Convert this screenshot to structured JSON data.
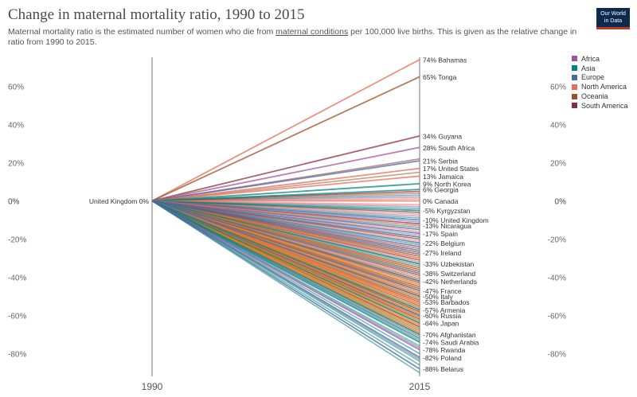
{
  "title": "Change in maternal mortality ratio, 1990 to 2015",
  "subtitle": {
    "before": "Maternal mortality ratio is the estimated number of women who die from ",
    "link": "maternal conditions",
    "after": " per 100,000 live births. This is given as the relative change in ratio from 1990 to 2015."
  },
  "logo": {
    "line1": "Our World",
    "line2": "in Data"
  },
  "colors": {
    "Africa": "#a2559c",
    "Asia": "#00847e",
    "Europe": "#4c6a9c",
    "North America": "#e56e5a",
    "Oceania": "#9a5129",
    "South America": "#883039",
    "Other": "#ff7f0e"
  },
  "legend": [
    "Africa",
    "Asia",
    "Europe",
    "North America",
    "Oceania",
    "South America"
  ],
  "chart_data": {
    "type": "slope",
    "title": "Change in maternal mortality ratio, 1990 to 2015",
    "x_labels": [
      "1990",
      "2015"
    ],
    "ylim": [
      -90,
      75
    ],
    "y_ticks": [
      60,
      40,
      20,
      0,
      -20,
      -40,
      -60,
      -80
    ],
    "tick_suffix": "%",
    "start_label": {
      "name": "United Kingdom",
      "value": "0%"
    },
    "labeled_series": [
      {
        "name": "Bahamas",
        "region": "North America",
        "value": 74
      },
      {
        "name": "Tonga",
        "region": "Oceania",
        "value": 65
      },
      {
        "name": "Guyana",
        "region": "South America",
        "value": 34
      },
      {
        "name": "South Africa",
        "region": "Africa",
        "value": 28
      },
      {
        "name": "Serbia",
        "region": "Europe",
        "value": 21
      },
      {
        "name": "United States",
        "region": "North America",
        "value": 17
      },
      {
        "name": "Jamaica",
        "region": "North America",
        "value": 13
      },
      {
        "name": "North Korea",
        "region": "Asia",
        "value": 9
      },
      {
        "name": "Georgia",
        "region": "Asia",
        "value": 6
      },
      {
        "name": "Canada",
        "region": "North America",
        "value": 0
      },
      {
        "name": "Kyrgyzstan",
        "region": "Asia",
        "value": -5
      },
      {
        "name": "United Kingdom",
        "region": "Europe",
        "value": -10
      },
      {
        "name": "Nicaragua",
        "region": "North America",
        "value": -13
      },
      {
        "name": "Spain",
        "region": "Europe",
        "value": -17
      },
      {
        "name": "Belgium",
        "region": "Europe",
        "value": -22
      },
      {
        "name": "Ireland",
        "region": "Europe",
        "value": -27
      },
      {
        "name": "Uzbekistan",
        "region": "Asia",
        "value": -33
      },
      {
        "name": "Switzerland",
        "region": "Europe",
        "value": -38
      },
      {
        "name": "Netherlands",
        "region": "Europe",
        "value": -42
      },
      {
        "name": "France",
        "region": "Europe",
        "value": -47
      },
      {
        "name": "Italy",
        "region": "Europe",
        "value": -50
      },
      {
        "name": "Barbados",
        "region": "North America",
        "value": -53
      },
      {
        "name": "Armenia",
        "region": "Asia",
        "value": -57
      },
      {
        "name": "Russia",
        "region": "Europe",
        "value": -60
      },
      {
        "name": "Japan",
        "region": "Asia",
        "value": -64
      },
      {
        "name": "Afghanistan",
        "region": "Asia",
        "value": -70
      },
      {
        "name": "Saudi Arabia",
        "region": "Asia",
        "value": -74
      },
      {
        "name": "Rwanda",
        "region": "Africa",
        "value": -78
      },
      {
        "name": "Poland",
        "region": "Europe",
        "value": -82
      },
      {
        "name": "Belarus",
        "region": "Europe",
        "value": -88
      }
    ],
    "background_series": [
      {
        "region": "Africa",
        "values": [
          2,
          -3,
          -8,
          -12,
          -15,
          -18,
          -20,
          -24,
          -28,
          -30,
          -32,
          -35,
          -37,
          -40,
          -43,
          -45,
          -48,
          -52,
          -55,
          -58,
          -62,
          -66,
          -72
        ]
      },
      {
        "region": "Asia",
        "values": [
          3,
          -4,
          -9,
          -14,
          -19,
          -23,
          -26,
          -29,
          -34,
          -37,
          -41,
          -45,
          -49,
          -52,
          -55,
          -58,
          -61,
          -63,
          -66,
          -68,
          -71,
          -73,
          -76,
          -80,
          -84,
          -86,
          -90
        ]
      },
      {
        "region": "Europe",
        "values": [
          -6,
          -11,
          -15,
          -19,
          -24,
          -26,
          -29,
          -31,
          -35,
          -39,
          -43,
          -46,
          -51,
          -56,
          -59,
          -62,
          -67,
          -72,
          -77,
          -83
        ]
      },
      {
        "region": "North America",
        "values": [
          1,
          5,
          -2,
          -7,
          -16,
          -21,
          -26,
          -30,
          -36,
          -44,
          -49,
          -55,
          -58,
          -61,
          -65
        ]
      },
      {
        "region": "Oceania",
        "values": [
          15,
          4,
          -6,
          -20,
          -28,
          -36,
          -42,
          -50,
          -54,
          -60,
          -69
        ]
      },
      {
        "region": "South America",
        "values": [
          22,
          5,
          -12,
          -25,
          -31,
          -39,
          -46,
          -53,
          -58,
          -62,
          -66
        ]
      },
      {
        "region": "Other",
        "values": [
          -29,
          -31,
          -33,
          -35,
          -37,
          -39,
          -41,
          -43,
          -44,
          -45,
          -46,
          -47,
          -48,
          -49,
          -50,
          -51,
          -52,
          -53,
          -54,
          -55,
          -56,
          -57,
          -58,
          -59,
          -60,
          -61,
          -62,
          -63,
          -64,
          -65,
          -66,
          -67,
          -68,
          -69,
          -70
        ]
      }
    ]
  }
}
